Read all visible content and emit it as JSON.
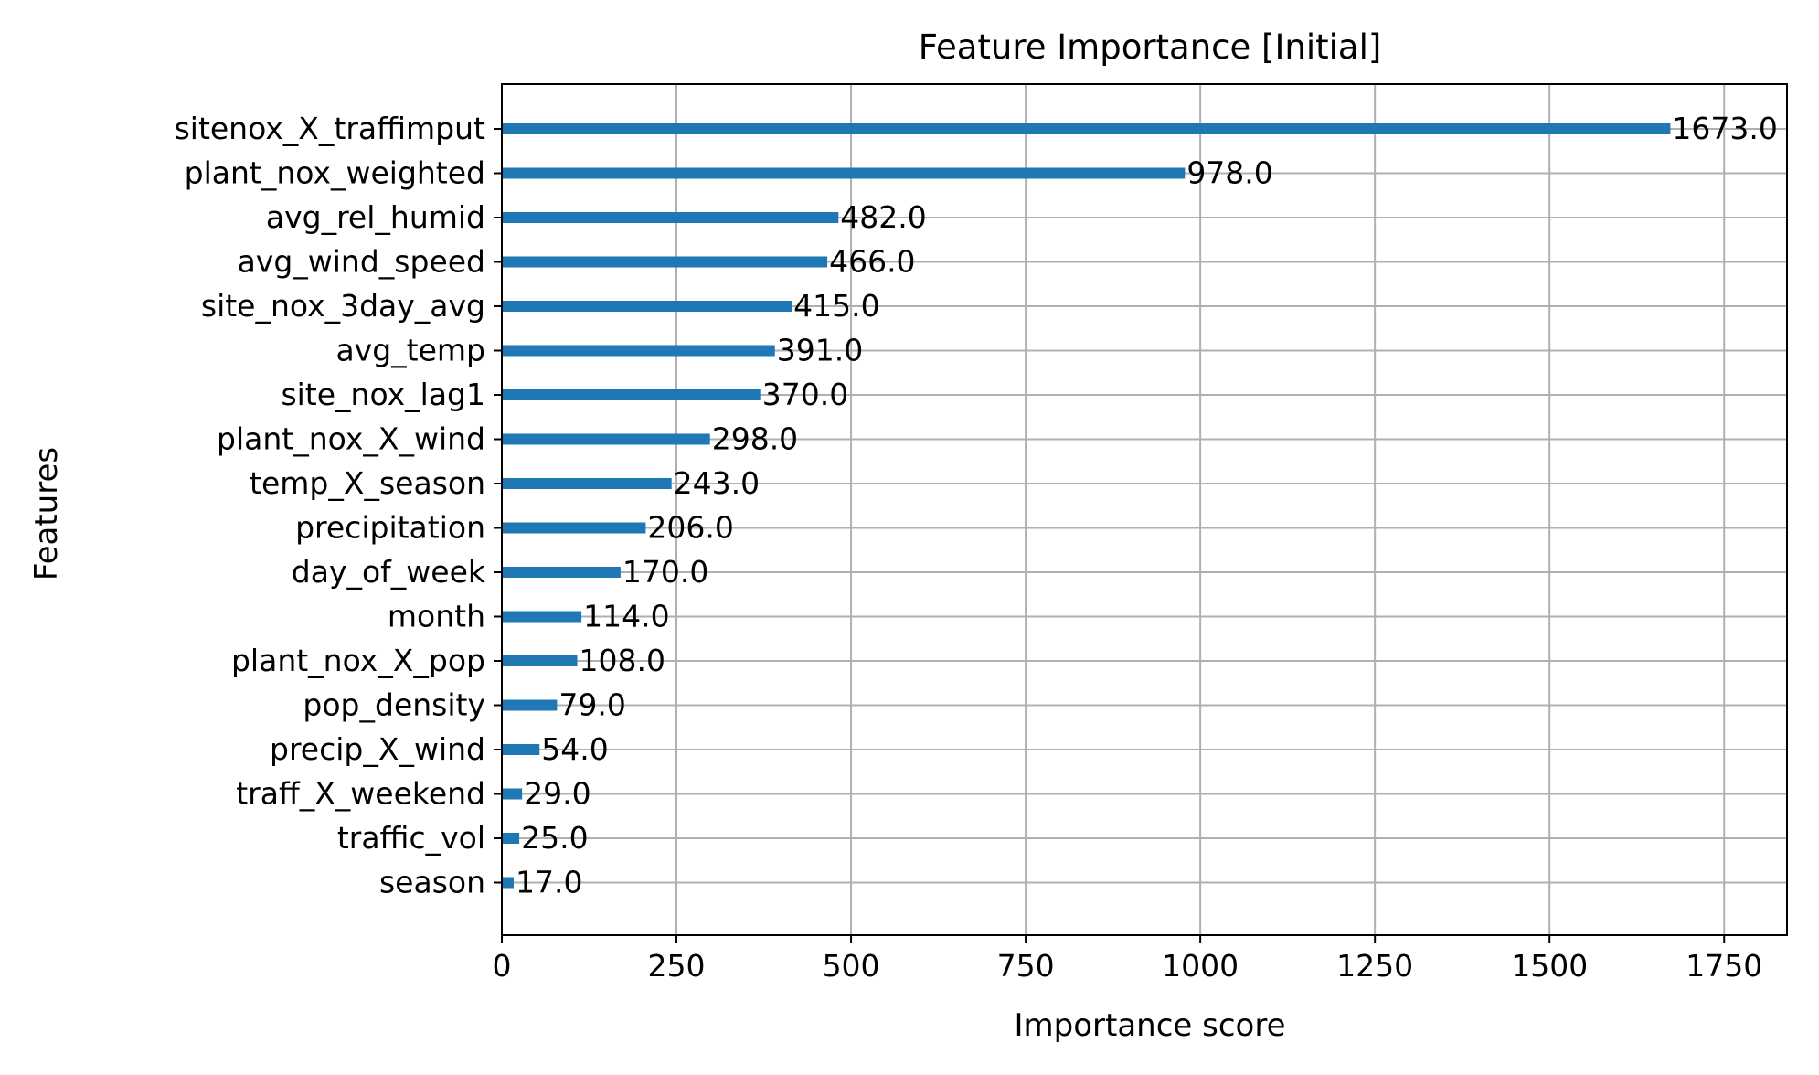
{
  "chart_data": {
    "type": "bar",
    "orientation": "horizontal",
    "title": "Feature Importance [Initial]",
    "xlabel": "Importance score",
    "ylabel": "Features",
    "categories": [
      "sitenox_X_traffimput",
      "plant_nox_weighted",
      "avg_rel_humid",
      "avg_wind_speed",
      "site_nox_3day_avg",
      "avg_temp",
      "site_nox_lag1",
      "plant_nox_X_wind",
      "temp_X_season",
      "precipitation",
      "day_of_week",
      "month",
      "plant_nox_X_pop",
      "pop_density",
      "precip_X_wind",
      "traff_X_weekend",
      "traffic_vol",
      "season"
    ],
    "values": [
      1673,
      978,
      482,
      466,
      415,
      391,
      370,
      298,
      243,
      206,
      170,
      114,
      108,
      79,
      54,
      29,
      25,
      17
    ],
    "value_labels": [
      "1673.0",
      "978.0",
      "482.0",
      "466.0",
      "415.0",
      "391.0",
      "370.0",
      "298.0",
      "243.0",
      "206.0",
      "170.0",
      "114.0",
      "108.0",
      "79.0",
      "54.0",
      "29.0",
      "25.0",
      "17.0"
    ],
    "xticks": [
      0,
      250,
      500,
      750,
      1000,
      1250,
      1500,
      1750
    ],
    "xtick_labels": [
      "0",
      "250",
      "500",
      "750",
      "1000",
      "1250",
      "1500",
      "1750"
    ],
    "xlim": [
      0,
      1840
    ],
    "grid": true,
    "bar_color": "#1f77b4"
  }
}
